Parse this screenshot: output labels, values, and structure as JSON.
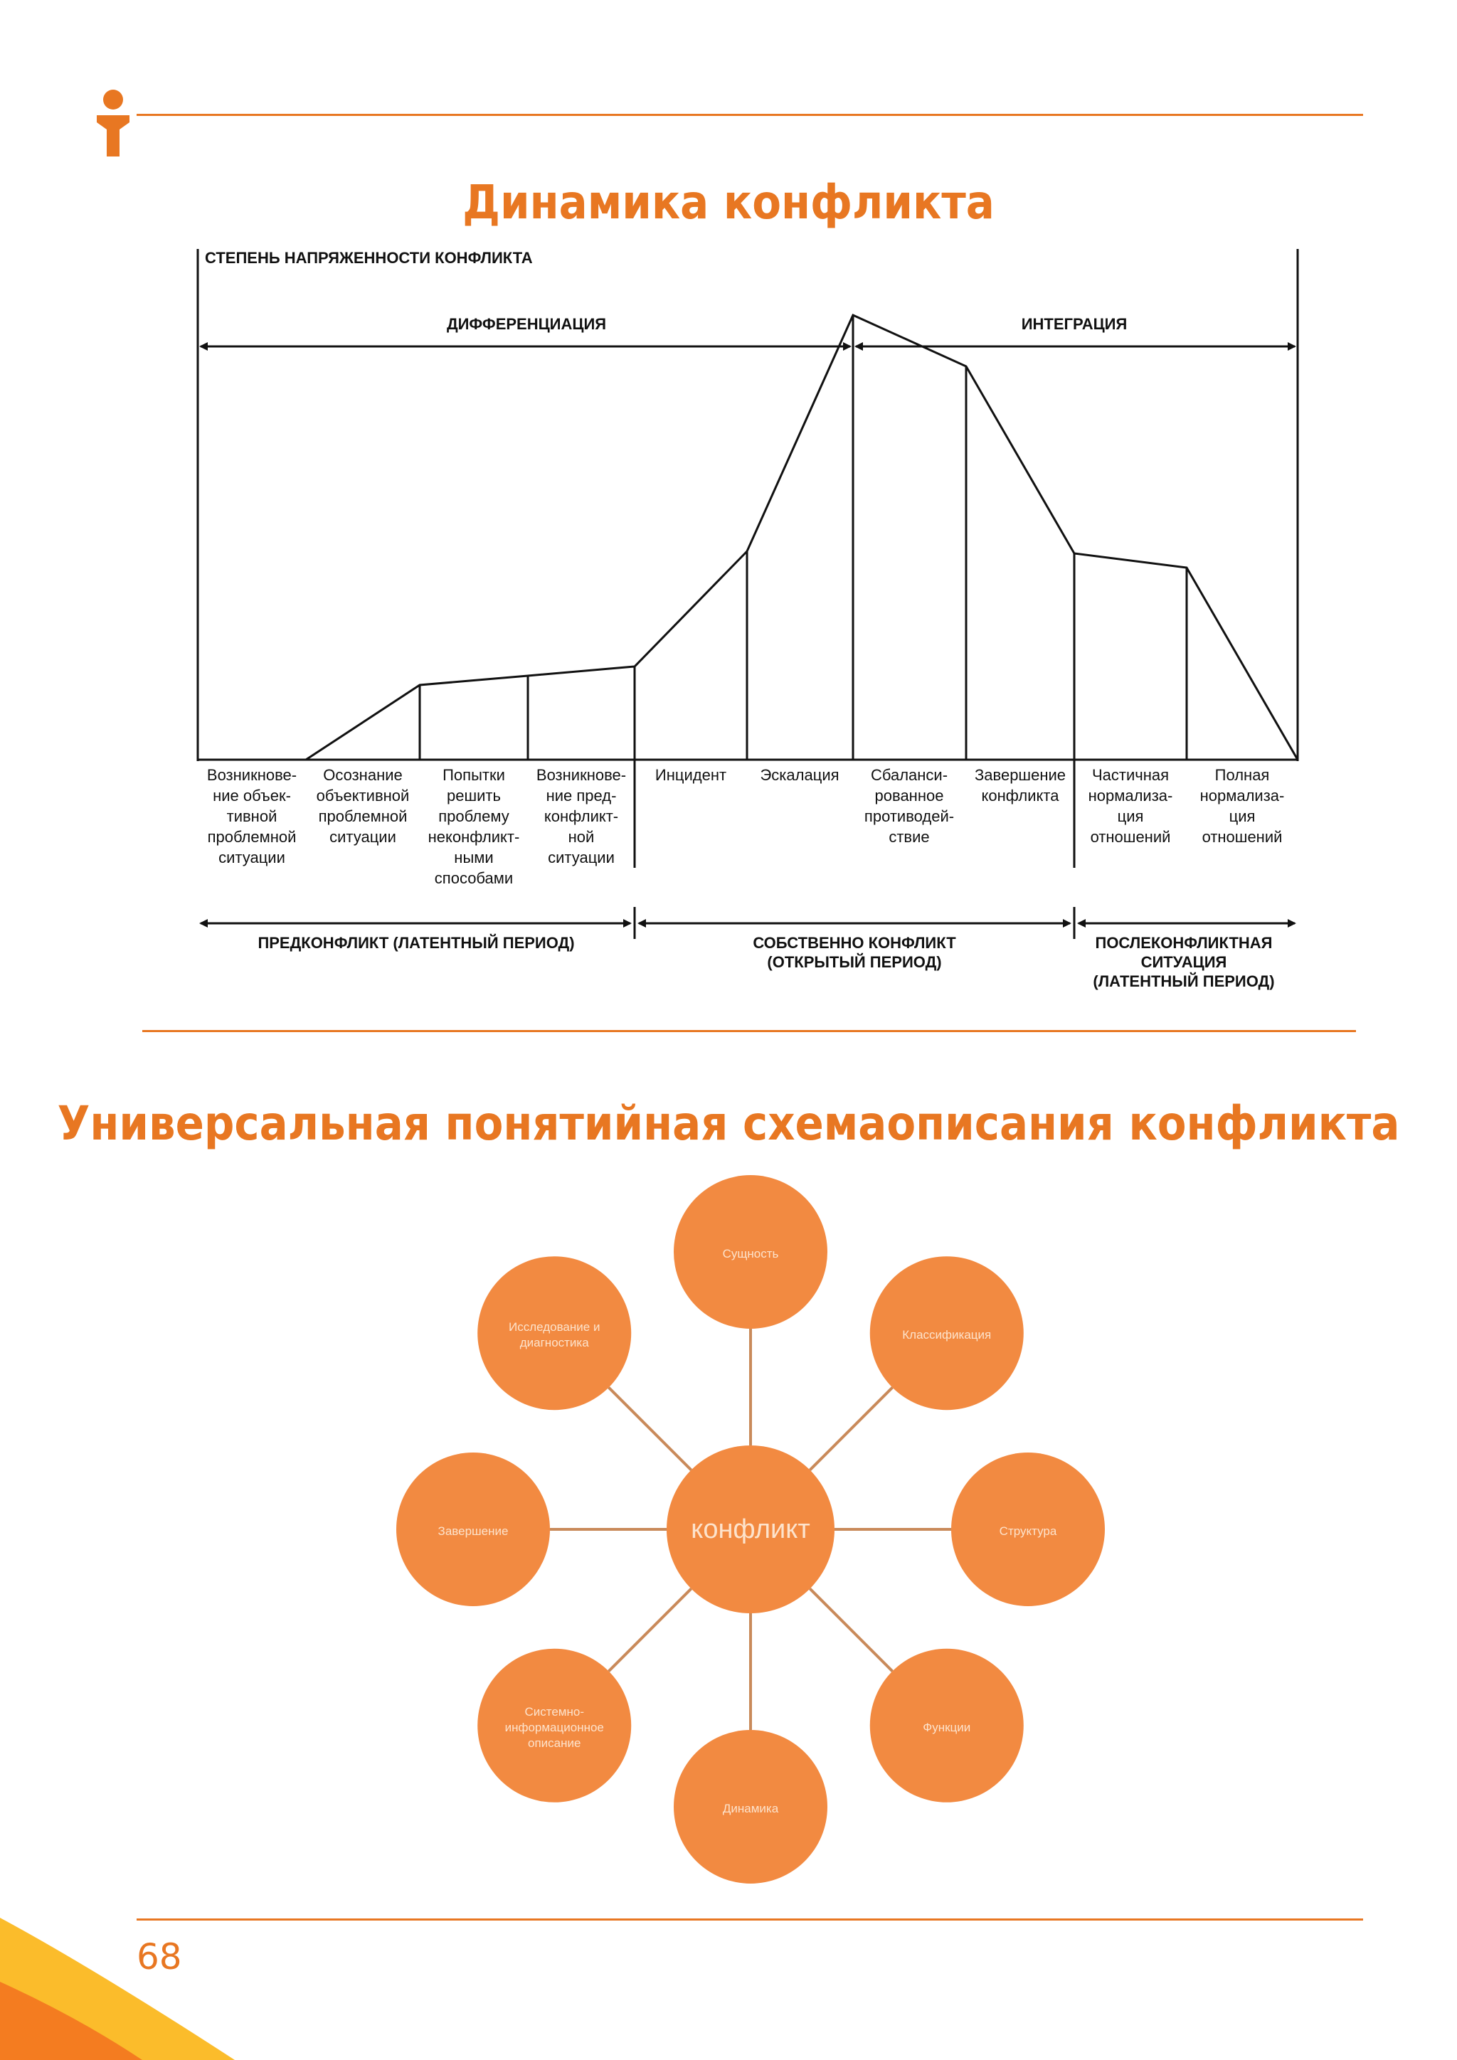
{
  "page_number": "68",
  "colors": {
    "accent": "#e87722",
    "circle": "#f28a41",
    "corner_yellow": "#fbbc2b",
    "corner_orange": "#f47c20"
  },
  "logo": "person-icon",
  "section1": {
    "title": "Динамика конфликта",
    "y_axis_label": "СТЕПЕНЬ НАПРЯЖЕННОСТИ КОНФЛИКТА",
    "top_ranges": [
      {
        "label": "ДИФФЕРЕНЦИАЦИЯ"
      },
      {
        "label": "ИНТЕГРАЦИЯ"
      }
    ],
    "stages": [
      [
        "Возникнове-",
        "ние объек-",
        "тивной",
        "проблемной",
        "ситуации"
      ],
      [
        "Осознание",
        "объективной",
        "проблемной",
        "ситуации"
      ],
      [
        "Попытки",
        "решить",
        "проблему",
        "неконфликт-",
        "ными",
        "способами"
      ],
      [
        "Возникнове-",
        "ние пред-",
        "конфликт-",
        "ной",
        "ситуации"
      ],
      [
        "Инцидент"
      ],
      [
        "Эскалация"
      ],
      [
        "Сбаланси-",
        "рованное",
        "противодей-",
        "ствие"
      ],
      [
        "Завершение",
        "конфликта"
      ],
      [
        "Частичная",
        "нормализа-",
        "ция",
        "отношений"
      ],
      [
        "Полная",
        "нормализа-",
        "ция",
        "отношений"
      ]
    ],
    "periods": [
      [
        "ПРЕДКОНФЛИКТ (ЛАТЕНТНЫЙ ПЕРИОД)"
      ],
      [
        "СОБСТВЕННО КОНФЛИКТ",
        "(ОТКРЫТЫЙ ПЕРИОД)"
      ],
      [
        "ПОСЛЕКОНФЛИКТНАЯ",
        "СИТУАЦИЯ",
        "(ЛАТЕНТНЫЙ ПЕРИОД)"
      ]
    ]
  },
  "section2": {
    "title": "Универсальная понятийная схемаописания конфликта",
    "center": "конфликт",
    "nodes": [
      [
        "Сущность"
      ],
      [
        "Классификация"
      ],
      [
        "Структура"
      ],
      [
        "Функции"
      ],
      [
        "Динамика"
      ],
      [
        "Системно-",
        "информационное",
        "описание"
      ],
      [
        "Завершение"
      ],
      [
        "Исследование и",
        "диагностика"
      ]
    ]
  }
}
